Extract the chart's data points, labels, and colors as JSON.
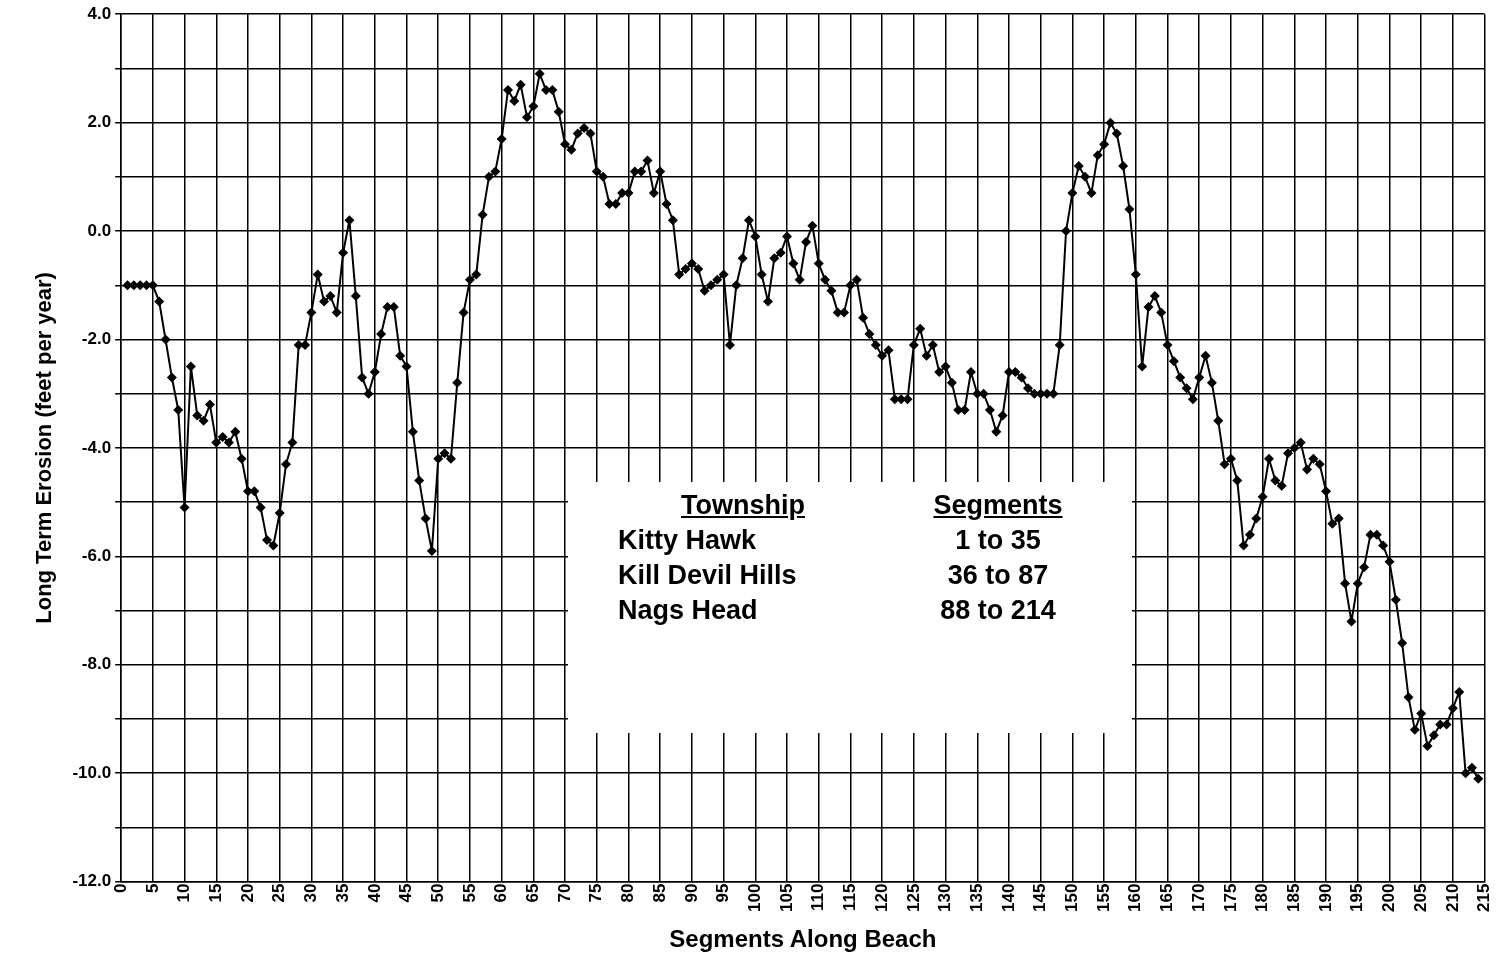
{
  "chart_data": {
    "type": "line",
    "xlabel": "Segments Along Beach",
    "ylabel": "Long Term Erosion (feet per year)",
    "x": [
      1,
      2,
      3,
      4,
      5,
      6,
      7,
      8,
      9,
      10,
      11,
      12,
      13,
      14,
      15,
      16,
      17,
      18,
      19,
      20,
      21,
      22,
      23,
      24,
      25,
      26,
      27,
      28,
      29,
      30,
      31,
      32,
      33,
      34,
      35,
      36,
      37,
      38,
      39,
      40,
      41,
      42,
      43,
      44,
      45,
      46,
      47,
      48,
      49,
      50,
      51,
      52,
      53,
      54,
      55,
      56,
      57,
      58,
      59,
      60,
      61,
      62,
      63,
      64,
      65,
      66,
      67,
      68,
      69,
      70,
      71,
      72,
      73,
      74,
      75,
      76,
      77,
      78,
      79,
      80,
      81,
      82,
      83,
      84,
      85,
      86,
      87,
      88,
      89,
      90,
      91,
      92,
      93,
      94,
      95,
      96,
      97,
      98,
      99,
      100,
      101,
      102,
      103,
      104,
      105,
      106,
      107,
      108,
      109,
      110,
      111,
      112,
      113,
      114,
      115,
      116,
      117,
      118,
      119,
      120,
      121,
      122,
      123,
      124,
      125,
      126,
      127,
      128,
      129,
      130,
      131,
      132,
      133,
      134,
      135,
      136,
      137,
      138,
      139,
      140,
      141,
      142,
      143,
      144,
      145,
      146,
      147,
      148,
      149,
      150,
      151,
      152,
      153,
      154,
      155,
      156,
      157,
      158,
      159,
      160,
      161,
      162,
      163,
      164,
      165,
      166,
      167,
      168,
      169,
      170,
      171,
      172,
      173,
      174,
      175,
      176,
      177,
      178,
      179,
      180,
      181,
      182,
      183,
      184,
      185,
      186,
      187,
      188,
      189,
      190,
      191,
      192,
      193,
      194,
      195,
      196,
      197,
      198,
      199,
      200,
      201,
      202,
      203,
      204,
      205,
      206,
      207,
      208,
      209,
      210,
      211,
      212,
      213,
      214
    ],
    "series": [
      {
        "color": "#000000",
        "values": [
          -1.0,
          -1.0,
          -1.0,
          -1.0,
          -1.0,
          -1.3,
          -2.0,
          -2.7,
          -3.3,
          -5.1,
          -2.5,
          -3.4,
          -3.5,
          -3.2,
          -3.9,
          -3.8,
          -3.9,
          -3.7,
          -4.2,
          -4.8,
          -4.8,
          -5.1,
          -5.7,
          -5.8,
          -5.2,
          -4.3,
          -3.9,
          -2.1,
          -2.1,
          -1.5,
          -0.8,
          -1.3,
          -1.2,
          -1.5,
          -0.4,
          0.2,
          -1.2,
          -2.7,
          -3.0,
          -2.6,
          -1.9,
          -1.4,
          -1.4,
          -2.3,
          -2.5,
          -3.7,
          -4.6,
          -5.3,
          -5.9,
          -4.2,
          -4.1,
          -4.2,
          -2.8,
          -1.5,
          -0.9,
          -0.8,
          0.3,
          1.0,
          1.1,
          1.7,
          2.6,
          2.4,
          2.7,
          2.1,
          2.3,
          2.9,
          2.6,
          2.6,
          2.2,
          1.6,
          1.5,
          1.8,
          1.9,
          1.8,
          1.1,
          1.0,
          0.5,
          0.5,
          0.7,
          0.7,
          1.1,
          1.1,
          1.3,
          0.7,
          1.1,
          0.5,
          0.2,
          -0.8,
          -0.7,
          -0.6,
          -0.7,
          -1.1,
          -1.0,
          -0.9,
          -0.8,
          -2.1,
          -1.0,
          -0.5,
          0.2,
          -0.1,
          -0.8,
          -1.3,
          -0.5,
          -0.4,
          -0.1,
          -0.6,
          -0.9,
          -0.2,
          0.1,
          -0.6,
          -0.9,
          -1.1,
          -1.5,
          -1.5,
          -1.0,
          -0.9,
          -1.6,
          -1.9,
          -2.1,
          -2.3,
          -2.2,
          -3.1,
          -3.1,
          -3.1,
          -2.1,
          -1.8,
          -2.3,
          -2.1,
          -2.6,
          -2.5,
          -2.8,
          -3.3,
          -3.3,
          -2.6,
          -3.0,
          -3.0,
          -3.3,
          -3.7,
          -3.4,
          -2.6,
          -2.6,
          -2.7,
          -2.9,
          -3.0,
          -3.0,
          -3.0,
          -3.0,
          -2.1,
          0.0,
          0.7,
          1.2,
          1.0,
          0.7,
          1.4,
          1.6,
          2.0,
          1.8,
          1.2,
          0.4,
          -0.8,
          -2.5,
          -1.4,
          -1.2,
          -1.5,
          -2.1,
          -2.4,
          -2.7,
          -2.9,
          -3.1,
          -2.7,
          -2.3,
          -2.8,
          -3.5,
          -4.3,
          -4.2,
          -4.6,
          -5.8,
          -5.6,
          -5.3,
          -4.9,
          -4.2,
          -4.6,
          -4.7,
          -4.1,
          -4.0,
          -3.9,
          -4.4,
          -4.2,
          -4.3,
          -4.8,
          -5.4,
          -5.3,
          -6.5,
          -7.2,
          -6.5,
          -6.2,
          -5.6,
          -5.6,
          -5.8,
          -6.1,
          -6.8,
          -7.6,
          -8.6,
          -9.2,
          -8.9,
          -9.5,
          -9.3,
          -9.1,
          -9.1,
          -8.8,
          -8.5,
          -10.0,
          -9.9,
          -10.1
        ]
      }
    ],
    "xlim": [
      0,
      215
    ],
    "xticks": [
      0,
      5,
      10,
      15,
      20,
      25,
      30,
      35,
      40,
      45,
      50,
      55,
      60,
      65,
      70,
      75,
      80,
      85,
      90,
      95,
      100,
      105,
      110,
      115,
      120,
      125,
      130,
      135,
      140,
      145,
      150,
      155,
      160,
      165,
      170,
      175,
      180,
      185,
      190,
      195,
      200,
      205,
      210,
      215
    ],
    "ylim": [
      -12,
      4
    ],
    "yticks": [
      {
        "value": -12,
        "label": "-12.0"
      },
      {
        "value": -11,
        "label": null
      },
      {
        "value": -10,
        "label": "-10.0"
      },
      {
        "value": -9,
        "label": null
      },
      {
        "value": -8,
        "label": "-8.0"
      },
      {
        "value": -7,
        "label": null
      },
      {
        "value": -6,
        "label": "-6.0"
      },
      {
        "value": -5,
        "label": null
      },
      {
        "value": -4,
        "label": "-4.0"
      },
      {
        "value": -3,
        "label": null
      },
      {
        "value": -2,
        "label": "-2.0"
      },
      {
        "value": -1,
        "label": null
      },
      {
        "value": 0,
        "label": "0.0"
      },
      {
        "value": 1,
        "label": null
      },
      {
        "value": 2,
        "label": "2.0"
      },
      {
        "value": 3,
        "label": null
      },
      {
        "value": 4,
        "label": "4.0"
      }
    ],
    "grid": true,
    "marker": "diamond",
    "line_style": "solid",
    "annotations": [
      "Township",
      "Segments",
      "Kitty Hawk",
      "1 to 35",
      "Kill Devil Hills",
      "36 to 87",
      "Nags Head",
      "88 to 214"
    ]
  }
}
